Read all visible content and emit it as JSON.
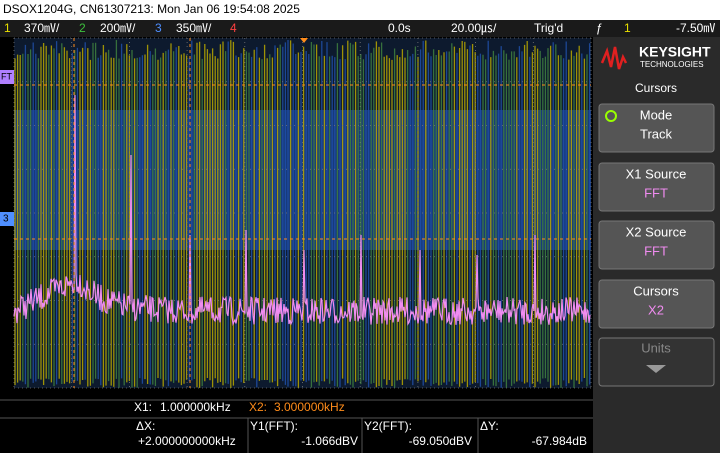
{
  "header": {
    "title": "DSOX1204G, CN61307213: Mon Jan 06 19:54:08 2025"
  },
  "status_bar": {
    "channels": [
      {
        "number": "1",
        "scale": "370㎷/"
      },
      {
        "number": "2",
        "scale": "200㎷/"
      },
      {
        "number": "3",
        "scale": "350㎷/"
      },
      {
        "number": "4"
      }
    ],
    "delay": "0.0s",
    "timebase": "20.00㎲/",
    "trigger_state": "Trig'd",
    "trigger_slope": "ƒ",
    "trigger_source": "1",
    "trigger_level": "-7.50㎷"
  },
  "markers": {
    "fft": "FT",
    "channel3": "3"
  },
  "side_panel": {
    "brand": "KEYSIGHT",
    "brand_sub": "TECHNOLOGIES",
    "menu_title": "Cursors",
    "buttons": [
      {
        "label": "Mode",
        "value": "Track"
      },
      {
        "label": "X1 Source",
        "value": "FFT"
      },
      {
        "label": "X2 Source",
        "value": "FFT"
      },
      {
        "label": "Cursors",
        "value": "X2"
      },
      {
        "label": "Units"
      }
    ]
  },
  "readout": {
    "x1_label": "X1:",
    "x1_value": "1.000000kHz",
    "x2_label": "X2:",
    "x2_value": "3.000000kHz",
    "dx_label": "ΔX:",
    "dx_value": "+2.000000000kHz",
    "y1_label": "Y1(FFT):",
    "y1_value": "-1.066dBV",
    "y2_label": "Y2(FFT):",
    "y2_value": "-69.050dBV",
    "dy_label": "ΔY:",
    "dy_value": "-67.984dB"
  }
}
